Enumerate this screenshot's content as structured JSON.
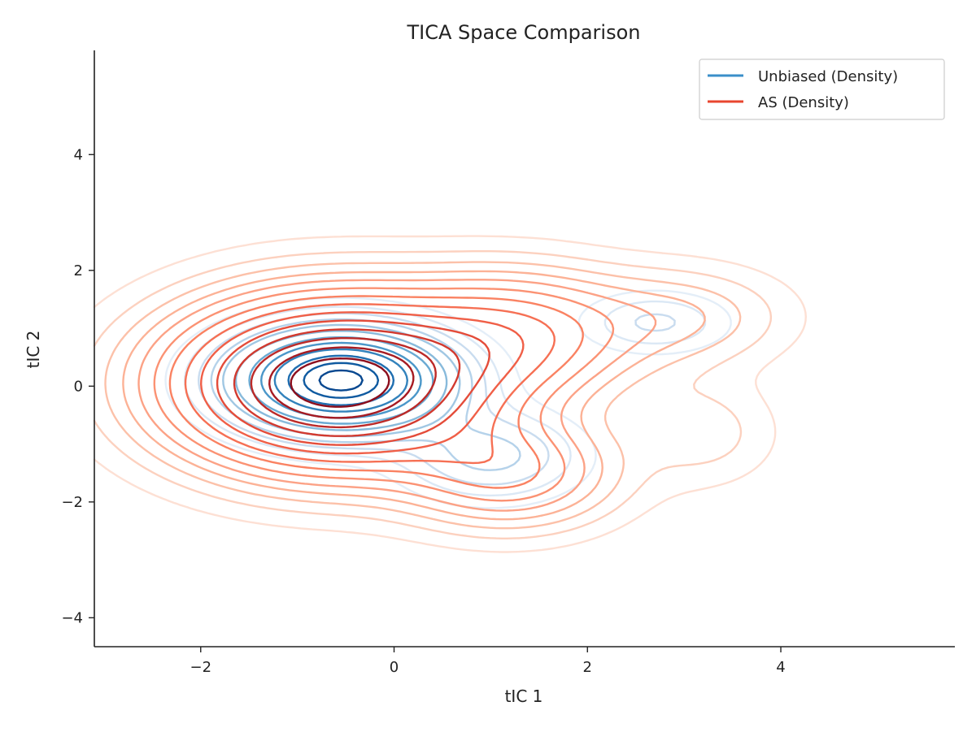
{
  "chart_data": {
    "type": "contour",
    "title": "TICA Space Comparison",
    "xlabel": "tIC 1",
    "ylabel": "tIC 2",
    "xlim": [
      -3.1,
      5.8
    ],
    "ylim": [
      -4.5,
      5.8
    ],
    "x_ticks": [
      -2,
      0,
      2,
      4
    ],
    "y_ticks": [
      -4,
      -2,
      0,
      2,
      4
    ],
    "x_tick_labels": [
      "−2",
      "0",
      "2",
      "4"
    ],
    "y_tick_labels": [
      "−4",
      "−2",
      "0",
      "2",
      "4"
    ],
    "grid": false,
    "legend_position": "top-right",
    "series": [
      {
        "name": "Unbiased (Density)",
        "legend_color": "#3a8fc9",
        "colormap": "Blues",
        "peaks": [
          {
            "x": -0.55,
            "y": 0.1,
            "sx": 0.7,
            "sy": 0.55,
            "w": 1.0
          },
          {
            "x": 2.7,
            "y": 1.1,
            "sx": 0.5,
            "sy": 0.35,
            "w": 0.12
          },
          {
            "x": 1.0,
            "y": -1.2,
            "sx": 0.6,
            "sy": 0.5,
            "w": 0.18
          }
        ],
        "levels": [
          {
            "v": 0.035,
            "color": "#e4eef8"
          },
          {
            "v": 0.07,
            "color": "#dbe8f5"
          },
          {
            "v": 0.11,
            "color": "#c9dcef"
          },
          {
            "v": 0.16,
            "color": "#b5d2ea"
          },
          {
            "v": 0.22,
            "color": "#a0c7e3"
          },
          {
            "v": 0.3,
            "color": "#88badb"
          },
          {
            "v": 0.4,
            "color": "#6aaad3"
          },
          {
            "v": 0.5,
            "color": "#4b97c9"
          },
          {
            "v": 0.62,
            "color": "#3282bc"
          },
          {
            "v": 0.74,
            "color": "#1f6eb0"
          },
          {
            "v": 0.86,
            "color": "#0f5aa0"
          },
          {
            "v": 0.95,
            "color": "#084890"
          }
        ]
      },
      {
        "name": "AS (Density)",
        "legend_color": "#e8462f",
        "colormap": "Reds",
        "peaks": [
          {
            "x": -0.6,
            "y": 0.05,
            "sx": 1.05,
            "sy": 0.9,
            "w": 1.0
          },
          {
            "x": 1.3,
            "y": 0.9,
            "sx": 0.8,
            "sy": 0.7,
            "w": 0.28
          },
          {
            "x": 3.0,
            "y": 1.2,
            "sx": 0.7,
            "sy": 0.55,
            "w": 0.1
          },
          {
            "x": 1.2,
            "y": -1.5,
            "sx": 0.7,
            "sy": 0.6,
            "w": 0.25
          },
          {
            "x": 3.2,
            "y": -0.8,
            "sx": 0.5,
            "sy": 0.6,
            "w": 0.06
          }
        ],
        "levels": [
          {
            "v": 0.02,
            "color": "#fde0d4"
          },
          {
            "v": 0.045,
            "color": "#fcd1bf"
          },
          {
            "v": 0.075,
            "color": "#fcc1a9"
          },
          {
            "v": 0.11,
            "color": "#fcb296"
          },
          {
            "v": 0.15,
            "color": "#fca286"
          },
          {
            "v": 0.2,
            "color": "#fb9273"
          },
          {
            "v": 0.26,
            "color": "#fa8262"
          },
          {
            "v": 0.33,
            "color": "#f67054"
          },
          {
            "v": 0.41,
            "color": "#f05f47"
          },
          {
            "v": 0.5,
            "color": "#e44c3a"
          },
          {
            "v": 0.6,
            "color": "#d23a2f"
          },
          {
            "v": 0.7,
            "color": "#bc2a28"
          },
          {
            "v": 0.8,
            "color": "#a61b22"
          },
          {
            "v": 0.9,
            "color": "#8c0e1d"
          }
        ]
      }
    ]
  }
}
